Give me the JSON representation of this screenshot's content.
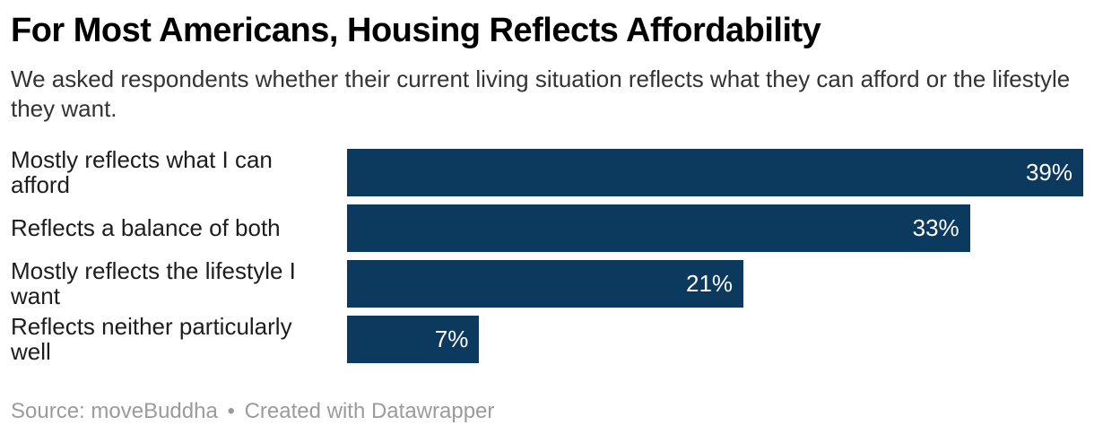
{
  "header": {
    "title": "For Most Americans, Housing Reflects Affordability",
    "subtitle": "We asked respondents whether their current living situation reflects what they can afford or the lifestyle they want."
  },
  "chart_data": {
    "type": "bar",
    "orientation": "horizontal",
    "title": "For Most Americans, Housing Reflects Affordability",
    "subtitle": "We asked respondents whether their current living situation reflects what they can afford or the lifestyle they want.",
    "categories": [
      "Mostly reflects what I can afford",
      "Reflects a balance of both",
      "Mostly reflects the lifestyle I want",
      "Reflects neither particularly well"
    ],
    "values": [
      39,
      33,
      21,
      7
    ],
    "value_labels": [
      "39%",
      "33%",
      "21%",
      "7%"
    ],
    "value_suffix": "%",
    "xlim": [
      0,
      39
    ],
    "xlabel": "",
    "ylabel": "",
    "grid": false,
    "legend": "none",
    "value_label_position": "inside-end",
    "bar_color": "#0c3a5e",
    "value_label_color": "#ffffff"
  },
  "footer": {
    "source_prefix": "Source:",
    "source_name": "moveBuddha",
    "separator": "•",
    "attribution": "Created with Datawrapper"
  },
  "colors": {
    "bar": "#0c3a5e",
    "title": "#000000",
    "subtitle": "#333333",
    "label": "#1d1d1d",
    "footer": "#9b9b9b",
    "background": "#ffffff"
  }
}
